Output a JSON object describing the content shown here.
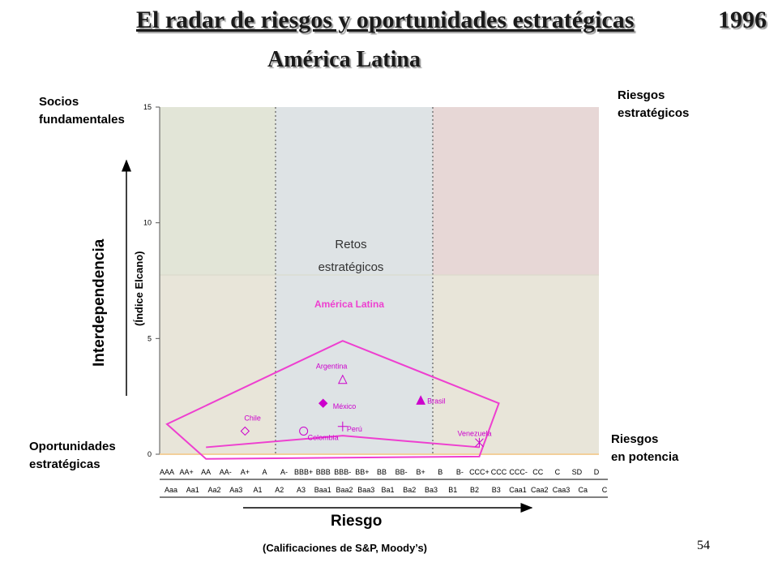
{
  "title": "El radar de riesgos y oportunidades estratégicas",
  "year": "1996",
  "subtitle": "América Latina",
  "quadrants": {
    "top_left": [
      "Socios",
      "fundamentales"
    ],
    "top_right": [
      "Riesgos",
      "estratégicos"
    ],
    "bottom_left": [
      "Oportunidades",
      "estratégicas"
    ],
    "bottom_right": [
      "Riesgos",
      "en potencia"
    ],
    "center": [
      "Retos",
      "estratégicos"
    ]
  },
  "y_axis_name": "Interdependencia",
  "y_axis_sub": "(Índice Elcano)",
  "x_axis_name": "Riesgo",
  "x_axis_sub": "(Calificaciones de S&P, Moody’s)",
  "page_number": "54",
  "colors": {
    "green_zone": "#e2e5d7",
    "blue_zone": "#dee3e5",
    "red_zone": "#e7d7d6",
    "beige_zone": "#e8e5d9",
    "magenta": "#ee3fd0",
    "marker": "#cc00cc"
  },
  "chart_data": {
    "type": "scatter",
    "region_label": "América Latina",
    "y_ticks": [
      "0",
      "5",
      "10",
      "15"
    ],
    "ylim": [
      0,
      15
    ],
    "x_categories_sp": [
      "AAA",
      "AA+",
      "AA",
      "AA-",
      "A+",
      "A",
      "A-",
      "BBB+",
      "BBB",
      "BBB-",
      "BB+",
      "BB",
      "BB-",
      "B+",
      "B",
      "B-",
      "CCC+",
      "CCC",
      "CCC-",
      "CC",
      "C",
      "SD",
      "D"
    ],
    "x_categories_moodys": [
      "Aaa",
      "Aa1",
      "Aa2",
      "Aa3",
      "A1",
      "A2",
      "A3",
      "Baa1",
      "Baa2",
      "Baa3",
      "Ba1",
      "Ba2",
      "Ba3",
      "B1",
      "B2",
      "B3",
      "Caa1",
      "Caa2",
      "Caa3",
      "Ca",
      "C"
    ],
    "points": [
      {
        "name": "Argentina",
        "x": "BBB-",
        "y": 3.2,
        "marker": "triangle-open"
      },
      {
        "name": "México",
        "x": "BBB",
        "y": 2.2,
        "marker": "diamond-filled"
      },
      {
        "name": "Brasil",
        "x": "B+",
        "y": 2.3,
        "marker": "triangle-filled"
      },
      {
        "name": "Chile",
        "x": "A+",
        "y": 1.0,
        "marker": "diamond-open"
      },
      {
        "name": "Colombia",
        "x": "BBB+",
        "y": 1.0,
        "marker": "circle-open"
      },
      {
        "name": "Perú",
        "x": "BBB-",
        "y": 1.2,
        "marker": "plus"
      },
      {
        "name": "Venezuela",
        "x": "CCC+",
        "y": 0.5,
        "marker": "asterisk"
      }
    ],
    "region_outer": [
      [
        "AAA",
        1.3
      ],
      [
        "BBB-",
        4.9
      ],
      [
        "CCC",
        2.2
      ],
      [
        "CCC+",
        -0.1
      ],
      [
        "AA",
        -0.2
      ]
    ],
    "region_inner_line": [
      [
        "AA",
        0.3
      ],
      [
        "BBB-",
        0.8
      ],
      [
        "CCC+",
        0.3
      ]
    ]
  }
}
